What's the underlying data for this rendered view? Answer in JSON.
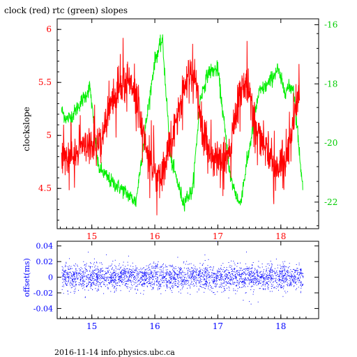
{
  "title": "clock (red) rtc (green) slopes",
  "footer": "2016-11-14 info.physics.ubc.ca",
  "colors": {
    "clock": "#ff0000",
    "rtc": "#00ee00",
    "offset": "#0000ff",
    "frame": "#000000"
  },
  "chart_data": [
    {
      "type": "line",
      "ylabel": "clockslope",
      "x_range": [
        14.45,
        18.6
      ],
      "x_ticks": [
        15,
        16,
        17,
        18
      ],
      "x_tick_labels": [
        "15",
        "16",
        "17",
        "18"
      ],
      "ylim": [
        4.12,
        6.1
      ],
      "y_ticks": [
        4.5,
        5,
        5.5,
        6
      ],
      "y_tick_labels": [
        "4.5",
        "5",
        "5.5",
        "6"
      ],
      "y2lim": [
        -22.9,
        -15.8
      ],
      "y2_ticks": [
        -22,
        -20,
        -18,
        -16
      ],
      "y2_tick_labels": [
        "-22",
        "-20",
        "-18",
        "-16"
      ],
      "series": [
        {
          "axis": "left",
          "color": "#ff0000",
          "x": [
            14.52,
            14.65,
            14.85,
            15.0,
            15.15,
            15.3,
            15.45,
            15.6,
            15.7,
            15.8,
            15.95,
            16.1,
            16.25,
            16.4,
            16.55,
            16.65,
            16.75,
            16.9,
            17.05,
            17.2,
            17.35,
            17.45,
            17.6,
            17.75,
            17.9,
            18.05,
            18.2,
            18.3
          ],
          "y": [
            4.85,
            4.8,
            4.88,
            4.85,
            4.92,
            5.3,
            5.45,
            5.5,
            5.45,
            5.05,
            4.7,
            4.55,
            4.95,
            5.3,
            5.6,
            5.5,
            5.05,
            4.82,
            4.72,
            4.85,
            5.45,
            5.5,
            5.1,
            4.85,
            4.72,
            4.7,
            5.1,
            5.45
          ]
        },
        {
          "axis": "right",
          "color": "#00ee00",
          "x": [
            14.52,
            14.6,
            14.7,
            14.8,
            14.9,
            14.97,
            15.1,
            15.3,
            15.5,
            15.7,
            15.85,
            16.0,
            16.12,
            16.25,
            16.45,
            16.6,
            16.72,
            16.85,
            17.0,
            17.2,
            17.35,
            17.5,
            17.65,
            17.8,
            17.95,
            18.05,
            18.2,
            18.35
          ],
          "y": [
            -18.9,
            -19.2,
            -19.05,
            -18.7,
            -18.4,
            -18.1,
            -20.8,
            -21.3,
            -21.6,
            -22.0,
            -19.5,
            -17.2,
            -16.5,
            -20.5,
            -22.0,
            -21.6,
            -18.5,
            -17.6,
            -17.5,
            -21.2,
            -22.1,
            -20.2,
            -18.3,
            -18.0,
            -17.5,
            -18.2,
            -18.1,
            -21.6
          ]
        }
      ]
    },
    {
      "type": "scatter",
      "ylabel": "offset(ms)",
      "x_range": [
        14.45,
        18.6
      ],
      "x_ticks": [
        15,
        16,
        17,
        18
      ],
      "x_tick_labels": [
        "15",
        "16",
        "17",
        "18"
      ],
      "ylim": [
        -0.053,
        0.046
      ],
      "y_ticks": [
        0.04,
        0.02,
        0,
        -0.02,
        -0.04
      ],
      "y_tick_labels": [
        "0.04",
        "0.02",
        "0",
        "-0.02",
        "-0.04"
      ],
      "x_extent": [
        14.52,
        18.35
      ],
      "center": 0.0,
      "spread": 0.008,
      "color": "#0000ff"
    }
  ]
}
